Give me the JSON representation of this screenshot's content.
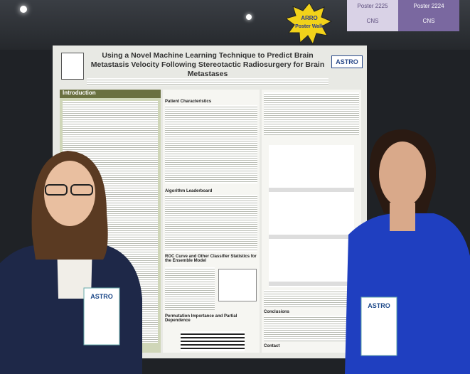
{
  "signs": {
    "left_poster": "Poster 2225",
    "left_label": "CNS",
    "right_poster": "Poster 2224",
    "right_label": "CNS"
  },
  "badge": {
    "line1": "ARRO",
    "line2": "Poster Walk"
  },
  "poster": {
    "title": "Using a Novel Machine Learning Technique to Predict Brain Metastasis Velocity Following Stereotactic Radiosurgery for Brain Metastases",
    "logo": "ASTRO",
    "sections": [
      "Introduction",
      "Patient Characteristics",
      "Algorithm Leaderboard",
      "ROC Curve and Other Classifier Statistics for the Ensemble Model",
      "Permutation Importance and Partial Dependence",
      "Conclusions",
      "Contact"
    ]
  },
  "lanyards": {
    "left": "ASTRO",
    "right": "ASTRO"
  }
}
